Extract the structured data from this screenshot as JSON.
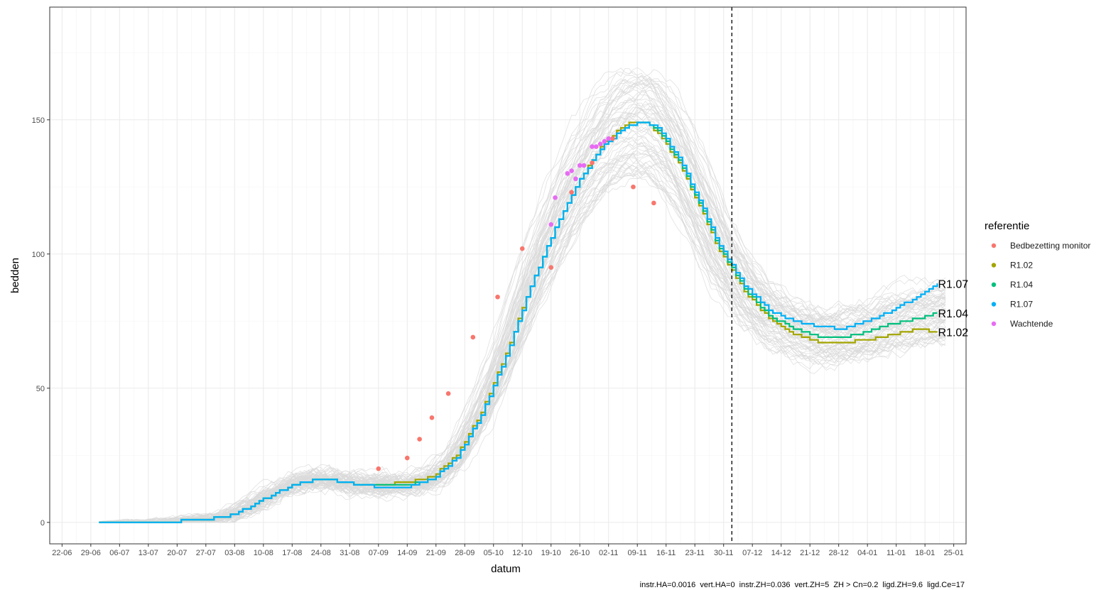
{
  "chart_data": {
    "type": "line",
    "xlabel": "datum",
    "ylabel": "bedden",
    "caption": "instr.HA=0.0016  vert.HA=0  instr.ZH=0.036  vert.ZH=5  ZH > Cn=0.2  ligd.ZH=9.6  ligd.Ce=17",
    "legend": {
      "title": "referentie",
      "placement": "right",
      "entries": [
        "Bedbezetting monitor",
        "R1.02",
        "R1.04",
        "R1.07",
        "Wachtende"
      ]
    },
    "colors": {
      "Bedbezetting monitor": "#F8766D",
      "R1.02": "#A3A500",
      "R1.04": "#00BF7D",
      "R1.07": "#00B0F6",
      "Wachtende": "#E76BF3",
      "ensemble": "#d9d9d9"
    },
    "x_ticks": [
      "22-06",
      "29-06",
      "06-07",
      "13-07",
      "20-07",
      "27-07",
      "03-08",
      "10-08",
      "17-08",
      "24-08",
      "31-08",
      "07-09",
      "14-09",
      "21-09",
      "28-09",
      "05-10",
      "12-10",
      "19-10",
      "26-10",
      "02-11",
      "09-11",
      "16-11",
      "23-11",
      "30-11",
      "07-12",
      "14-12",
      "21-12",
      "28-12",
      "04-01",
      "11-01",
      "18-01",
      "25-01"
    ],
    "y_ticks": [
      0,
      50,
      100,
      150
    ],
    "ylim": [
      -8,
      192
    ],
    "xlim_days": [
      -3,
      220
    ],
    "vertical_line": "02-12",
    "end_labels": [
      "R1.07",
      "R1.04",
      "R1.02"
    ],
    "series": [
      {
        "name": "R1.07",
        "points": [
          [
            9,
            0
          ],
          [
            25,
            0
          ],
          [
            33,
            1
          ],
          [
            40,
            2
          ],
          [
            46,
            6
          ],
          [
            52,
            11
          ],
          [
            58,
            15
          ],
          [
            64,
            16
          ],
          [
            72,
            14
          ],
          [
            78,
            13
          ],
          [
            84,
            13
          ],
          [
            90,
            16
          ],
          [
            96,
            24
          ],
          [
            102,
            40
          ],
          [
            108,
            62
          ],
          [
            114,
            88
          ],
          [
            120,
            110
          ],
          [
            126,
            128
          ],
          [
            132,
            141
          ],
          [
            138,
            148
          ],
          [
            142,
            149
          ],
          [
            145,
            147
          ],
          [
            150,
            136
          ],
          [
            155,
            120
          ],
          [
            160,
            103
          ],
          [
            166,
            88
          ],
          [
            172,
            79
          ],
          [
            178,
            75
          ],
          [
            184,
            73
          ],
          [
            190,
            72
          ],
          [
            196,
            75
          ],
          [
            202,
            79
          ],
          [
            208,
            84
          ],
          [
            213,
            89
          ]
        ]
      },
      {
        "name": "R1.04",
        "points": [
          [
            9,
            0
          ],
          [
            25,
            0
          ],
          [
            33,
            1
          ],
          [
            40,
            2
          ],
          [
            46,
            6
          ],
          [
            52,
            11
          ],
          [
            58,
            15
          ],
          [
            64,
            16
          ],
          [
            72,
            14
          ],
          [
            78,
            14
          ],
          [
            84,
            14
          ],
          [
            90,
            16
          ],
          [
            96,
            24
          ],
          [
            102,
            40
          ],
          [
            108,
            62
          ],
          [
            114,
            88
          ],
          [
            120,
            110
          ],
          [
            126,
            128
          ],
          [
            132,
            141
          ],
          [
            138,
            148
          ],
          [
            142,
            149
          ],
          [
            145,
            146
          ],
          [
            150,
            135
          ],
          [
            155,
            119
          ],
          [
            160,
            102
          ],
          [
            166,
            87
          ],
          [
            172,
            77
          ],
          [
            178,
            72
          ],
          [
            184,
            69
          ],
          [
            190,
            69
          ],
          [
            196,
            71
          ],
          [
            202,
            74
          ],
          [
            208,
            76
          ],
          [
            213,
            78
          ]
        ]
      },
      {
        "name": "R1.02",
        "points": [
          [
            9,
            0
          ],
          [
            25,
            0
          ],
          [
            33,
            1
          ],
          [
            40,
            2
          ],
          [
            46,
            6
          ],
          [
            52,
            11
          ],
          [
            58,
            15
          ],
          [
            64,
            16
          ],
          [
            72,
            14
          ],
          [
            78,
            14
          ],
          [
            84,
            15
          ],
          [
            90,
            17
          ],
          [
            96,
            25
          ],
          [
            102,
            41
          ],
          [
            108,
            63
          ],
          [
            114,
            88
          ],
          [
            120,
            110
          ],
          [
            126,
            128
          ],
          [
            132,
            142
          ],
          [
            138,
            149
          ],
          [
            142,
            149
          ],
          [
            145,
            145
          ],
          [
            150,
            134
          ],
          [
            155,
            118
          ],
          [
            160,
            101
          ],
          [
            166,
            86
          ],
          [
            172,
            76
          ],
          [
            178,
            70
          ],
          [
            184,
            67
          ],
          [
            190,
            67
          ],
          [
            196,
            68
          ],
          [
            202,
            70
          ],
          [
            208,
            72
          ],
          [
            213,
            71
          ]
        ]
      }
    ],
    "points_series": [
      {
        "name": "Bedbezetting monitor",
        "points": [
          [
            77,
            20
          ],
          [
            84,
            24
          ],
          [
            87,
            31
          ],
          [
            90,
            39
          ],
          [
            94,
            48
          ],
          [
            100,
            69
          ],
          [
            106,
            84
          ],
          [
            112,
            102
          ],
          [
            119,
            95
          ],
          [
            124,
            123
          ],
          [
            129,
            134
          ],
          [
            134,
            143
          ],
          [
            139,
            125
          ],
          [
            144,
            119
          ]
        ]
      },
      {
        "name": "Wachtende",
        "points": [
          [
            119,
            111
          ],
          [
            120,
            121
          ],
          [
            123,
            130
          ],
          [
            124,
            131
          ],
          [
            125,
            128
          ],
          [
            126,
            133
          ],
          [
            127,
            133
          ],
          [
            129,
            140
          ],
          [
            130,
            140
          ],
          [
            131,
            141
          ],
          [
            132,
            142
          ],
          [
            133,
            143
          ]
        ]
      }
    ]
  }
}
